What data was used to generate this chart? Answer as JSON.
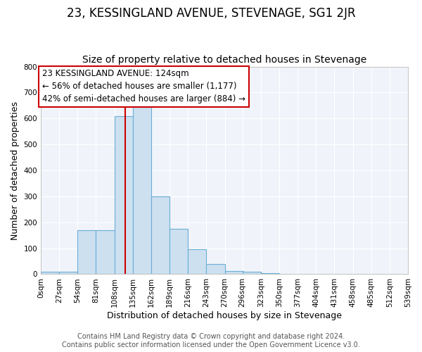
{
  "title": "23, KESSINGLAND AVENUE, STEVENAGE, SG1 2JR",
  "subtitle": "Size of property relative to detached houses in Stevenage",
  "xlabel": "Distribution of detached houses by size in Stevenage",
  "ylabel": "Number of detached properties",
  "bin_edges": [
    0,
    27,
    54,
    81,
    108,
    135,
    162,
    189,
    216,
    243,
    270,
    296,
    323,
    350,
    377,
    404,
    431,
    458,
    485,
    512,
    539
  ],
  "bar_heights": [
    10,
    10,
    170,
    170,
    610,
    650,
    300,
    175,
    95,
    40,
    12,
    10,
    3,
    0,
    0,
    0,
    0,
    0,
    0,
    0
  ],
  "bar_color": "#cce0f0",
  "bar_edge_color": "#6aaed6",
  "property_line_x": 124,
  "property_line_color": "#cc0000",
  "annotation_line1": "23 KESSINGLAND AVENUE: 124sqm",
  "annotation_line2": "← 56% of detached houses are smaller (1,177)",
  "annotation_line3": "42% of semi-detached houses are larger (884) →",
  "annotation_box_color": "#ffffff",
  "annotation_box_edge": "#cc0000",
  "ylim": [
    0,
    800
  ],
  "yticks": [
    0,
    100,
    200,
    300,
    400,
    500,
    600,
    700,
    800
  ],
  "footer_line1": "Contains HM Land Registry data © Crown copyright and database right 2024.",
  "footer_line2": "Contains public sector information licensed under the Open Government Licence v3.0.",
  "fig_background_color": "#ffffff",
  "plot_background_color": "#f0f4fa",
  "grid_color": "#ffffff",
  "title_fontsize": 12,
  "subtitle_fontsize": 10,
  "axis_label_fontsize": 9,
  "tick_fontsize": 7.5,
  "annotation_fontsize": 8.5,
  "footer_fontsize": 7
}
